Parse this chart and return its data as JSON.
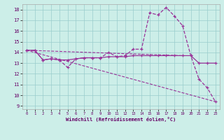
{
  "xlabel": "Windchill (Refroidissement éolien,°C)",
  "background_color": "#cceee8",
  "grid_color": "#99cccc",
  "line_color": "#993399",
  "x_ticks": [
    0,
    1,
    2,
    3,
    4,
    5,
    6,
    7,
    8,
    9,
    10,
    11,
    12,
    13,
    14,
    15,
    16,
    17,
    18,
    19,
    20,
    21,
    22,
    23
  ],
  "y_ticks": [
    9,
    10,
    11,
    12,
    13,
    14,
    15,
    16,
    17,
    18
  ],
  "ylim": [
    8.7,
    18.5
  ],
  "xlim": [
    -0.5,
    23.5
  ],
  "line1_x": [
    0,
    1,
    2,
    3,
    4,
    5,
    6,
    7,
    8,
    9,
    10,
    11,
    12,
    13,
    14,
    15,
    16,
    17,
    18,
    19,
    20,
    21,
    22,
    23
  ],
  "line1_y": [
    14.2,
    14.2,
    13.3,
    13.4,
    13.3,
    12.6,
    13.4,
    13.5,
    13.5,
    13.5,
    14.0,
    13.6,
    13.7,
    14.3,
    14.3,
    17.7,
    17.5,
    18.2,
    17.4,
    16.5,
    13.7,
    11.5,
    10.7,
    9.4
  ],
  "line2_x": [
    0,
    1,
    2,
    3,
    4,
    5,
    6,
    7,
    8,
    9,
    10,
    11,
    12,
    13,
    14,
    15,
    16,
    17,
    18,
    19,
    20,
    21,
    22,
    23
  ],
  "line2_y": [
    14.2,
    14.2,
    13.3,
    13.4,
    13.3,
    13.3,
    13.4,
    13.5,
    13.5,
    13.5,
    13.6,
    13.6,
    13.6,
    13.7,
    13.7,
    13.7,
    13.7,
    13.7,
    13.7,
    13.7,
    13.7,
    13.0,
    13.0,
    13.0
  ],
  "line3_x": [
    0,
    23
  ],
  "line3_y": [
    14.2,
    9.4
  ],
  "line4_x": [
    0,
    19
  ],
  "line4_y": [
    14.2,
    13.7
  ]
}
